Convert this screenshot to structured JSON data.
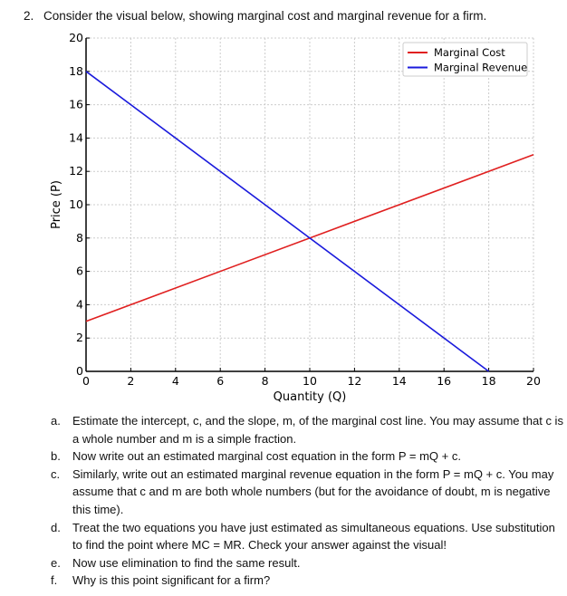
{
  "question": {
    "number": "2.",
    "text": "Consider the visual below, showing marginal cost and marginal revenue for a firm."
  },
  "chart_data": {
    "type": "line",
    "xlabel": "Quantity (Q)",
    "ylabel": "Price (P)",
    "xlim": [
      0,
      20
    ],
    "ylim": [
      0,
      20
    ],
    "xticks": [
      0,
      2,
      4,
      6,
      8,
      10,
      12,
      14,
      16,
      18,
      20
    ],
    "yticks": [
      0,
      2,
      4,
      6,
      8,
      10,
      12,
      14,
      16,
      18,
      20
    ],
    "grid": true,
    "legend": "top-right",
    "series": [
      {
        "name": "Marginal Cost",
        "color": "#e02020",
        "x": [
          0,
          20
        ],
        "y": [
          3,
          13
        ]
      },
      {
        "name": "Marginal Revenue",
        "color": "#1a1adc",
        "x": [
          0,
          18
        ],
        "y": [
          18,
          0
        ]
      }
    ]
  },
  "items": [
    {
      "label": "a.",
      "text": "Estimate the intercept, c, and the slope, m, of the marginal cost line. You may assume that c is a whole number and m is a simple fraction."
    },
    {
      "label": "b.",
      "text": "Now write out an estimated marginal cost equation in the form P = mQ + c."
    },
    {
      "label": "c.",
      "text": "Similarly, write out an estimated marginal revenue equation in the form P = mQ + c. You may assume that c and m are both whole numbers (but for the avoidance of doubt, m is negative this time)."
    },
    {
      "label": "d.",
      "text": "Treat the two equations you have just estimated as simultaneous equations. Use substitution to find the point where MC = MR. Check your answer against the visual!"
    },
    {
      "label": "e.",
      "text": "Now use elimination to find the same result."
    },
    {
      "label": "f.",
      "text": "Why is this point significant for a firm?"
    }
  ]
}
